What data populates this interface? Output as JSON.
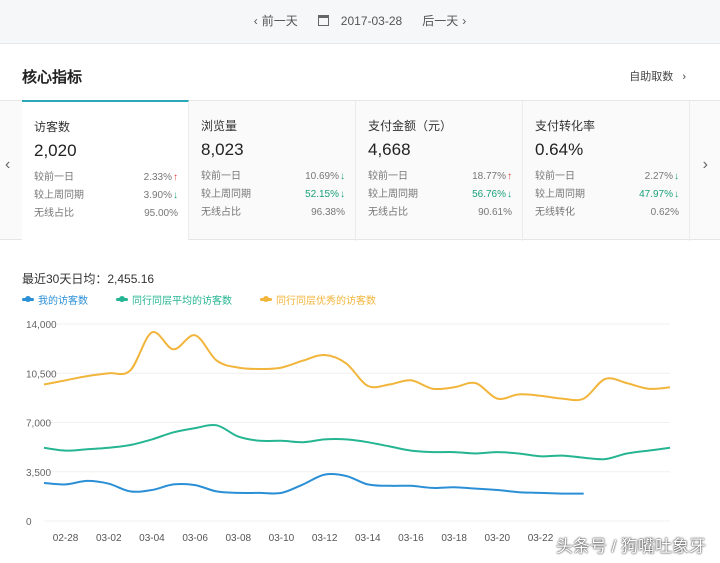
{
  "date_nav": {
    "prev_label": "前一天",
    "date": "2017-03-28",
    "next_label": "后一天"
  },
  "section": {
    "title": "核心指标",
    "fetch_label": "自助取数"
  },
  "metrics": [
    {
      "label": "访客数",
      "value": "2,020",
      "rows": [
        {
          "name": "较前一日",
          "value": "2.33%",
          "trend": "up"
        },
        {
          "name": "较上周同期",
          "value": "3.90%",
          "trend": "down"
        },
        {
          "name": "无线占比",
          "value": "95.00%",
          "trend": ""
        }
      ]
    },
    {
      "label": "浏览量",
      "value": "8,023",
      "rows": [
        {
          "name": "较前一日",
          "value": "10.69%",
          "trend": "down"
        },
        {
          "name": "较上周同期",
          "value": "52.15%",
          "trend": "down"
        },
        {
          "name": "无线占比",
          "value": "96.38%",
          "trend": ""
        }
      ]
    },
    {
      "label": "支付金额（元）",
      "value": "4,668",
      "rows": [
        {
          "name": "较前一日",
          "value": "18.77%",
          "trend": "up"
        },
        {
          "name": "较上周同期",
          "value": "56.76%",
          "trend": "down"
        },
        {
          "name": "无线占比",
          "value": "90.61%",
          "trend": ""
        }
      ]
    },
    {
      "label": "支付转化率",
      "value": "0.64%",
      "rows": [
        {
          "name": "较前一日",
          "value": "2.27%",
          "trend": "down"
        },
        {
          "name": "较上周同期",
          "value": "47.97%",
          "trend": "down"
        },
        {
          "name": "无线转化",
          "value": "0.62%",
          "trend": ""
        }
      ]
    }
  ],
  "avg_text": "最近30天日均：2,455.16",
  "colors": {
    "mine": "#2b8fd6",
    "avg": "#25b592",
    "best": "#f2b53b",
    "accent": "#2aa8b8",
    "up": "#e53935",
    "down": "#1aa07a"
  },
  "chart_data": {
    "type": "line",
    "x": [
      "02-27",
      "02-28",
      "03-01",
      "03-02",
      "03-03",
      "03-04",
      "03-05",
      "03-06",
      "03-07",
      "03-08",
      "03-09",
      "03-10",
      "03-11",
      "03-12",
      "03-13",
      "03-14",
      "03-15",
      "03-16",
      "03-17",
      "03-18",
      "03-19",
      "03-20",
      "03-21",
      "03-22",
      "03-23",
      "03-24",
      "03-25",
      "03-26",
      "03-27",
      "03-28"
    ],
    "xticks": [
      "02-28",
      "03-02",
      "03-04",
      "03-06",
      "03-08",
      "03-10",
      "03-12",
      "03-14",
      "03-16",
      "03-18",
      "03-20",
      "03-22"
    ],
    "yticks": [
      "0",
      "3,500",
      "7,000",
      "10,500",
      "14,000"
    ],
    "ylim": [
      0,
      14000
    ],
    "series": [
      {
        "name": "我的访客数",
        "color": "#2b8fd6",
        "values": [
          2700,
          2600,
          2850,
          2650,
          2100,
          2200,
          2600,
          2550,
          2100,
          2000,
          2000,
          2000,
          2600,
          3300,
          3200,
          2600,
          2500,
          2500,
          2350,
          2400,
          2300,
          2200,
          2050,
          2000,
          1950,
          1950,
          null,
          null,
          null,
          null
        ]
      },
      {
        "name": "同行同层平均的访客数",
        "color": "#25b592",
        "values": [
          5200,
          5000,
          5100,
          5200,
          5400,
          5800,
          6300,
          6600,
          6800,
          6000,
          5700,
          5700,
          5600,
          5800,
          5800,
          5600,
          5300,
          5000,
          4900,
          4900,
          4800,
          4900,
          4800,
          4600,
          4650,
          4500,
          4400,
          4800,
          5000,
          5200
        ]
      },
      {
        "name": "同行同层优秀的访客数",
        "color": "#f2b53b",
        "values": [
          9700,
          10000,
          10300,
          10500,
          10700,
          13400,
          12200,
          13200,
          11400,
          10900,
          10800,
          10900,
          11400,
          11800,
          11200,
          9600,
          9700,
          10000,
          9400,
          9500,
          9800,
          8700,
          9000,
          8900,
          8700,
          8700,
          10100,
          9800,
          9400,
          9500
        ]
      }
    ]
  },
  "watermark": "头条号 / 狗嘴吐象牙"
}
